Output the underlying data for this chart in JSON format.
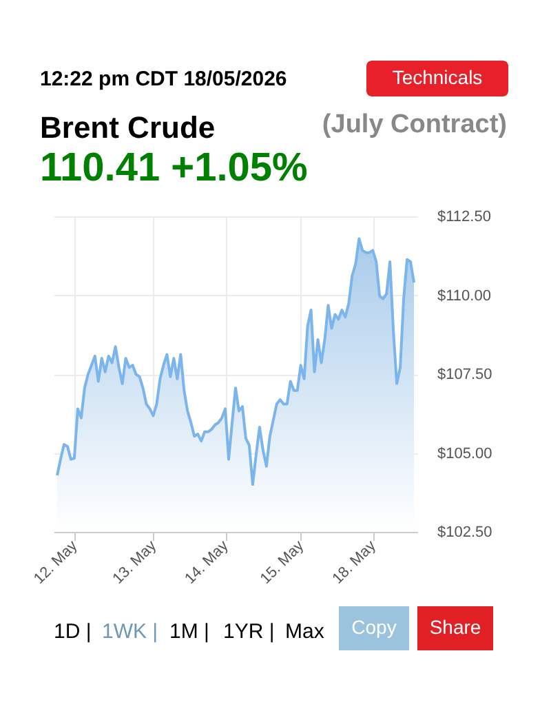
{
  "chart_data": {
    "type": "area",
    "title": "Brent Crude",
    "subtitle": "(July Contract)",
    "annotations": [
      "12:22 pm CDT 18/05/2026",
      "110.41 +1.05%",
      "Technicals",
      "1D |",
      "1WK |",
      "1M |",
      "1YR |",
      "Max",
      "Copy",
      "Share"
    ],
    "categories": [
      null,
      null,
      null,
      null,
      null,
      "12. May",
      null,
      null,
      null,
      null,
      null,
      null,
      null,
      null,
      null,
      null,
      null,
      null,
      null,
      null,
      null,
      null,
      null,
      null,
      null,
      null,
      null,
      null,
      "13. May",
      null,
      null,
      null,
      null,
      null,
      null,
      null,
      null,
      null,
      null,
      null,
      null,
      null,
      null,
      null,
      null,
      null,
      null,
      null,
      null,
      "14. May",
      null,
      null,
      null,
      null,
      null,
      null,
      null,
      null,
      null,
      null,
      null,
      null,
      null,
      null,
      null,
      null,
      null,
      null,
      null,
      null,
      null,
      "15. May",
      null,
      null,
      null,
      null,
      null,
      null,
      null,
      null,
      null,
      null,
      null,
      null,
      null,
      null,
      null,
      null,
      null,
      null,
      null,
      null,
      "18. May",
      null,
      null,
      null,
      null,
      null,
      null,
      null,
      null,
      null,
      null,
      null,
      null
    ],
    "series": [
      {
        "color": "#7cb5ec",
        "values": [
          104.29,
          104.8,
          105.27,
          105.21,
          104.8,
          104.83,
          106.4,
          106.11,
          107.06,
          107.49,
          107.78,
          108.07,
          107.27,
          108.0,
          107.57,
          108.07,
          107.86,
          108.37,
          107.71,
          107.2,
          108.0,
          107.71,
          107.78,
          107.49,
          107.42,
          107.06,
          106.55,
          106.4,
          106.18,
          106.55,
          107.35,
          107.78,
          108.12,
          107.42,
          108.0,
          107.35,
          108.12,
          106.98,
          106.33,
          105.96,
          105.53,
          105.6,
          105.38,
          105.67,
          105.67,
          105.75,
          105.89,
          105.96,
          106.11,
          106.4,
          104.8,
          105.96,
          107.06,
          106.33,
          106.47,
          105.46,
          105.24,
          104.0,
          104.95,
          105.82,
          105.09,
          104.58,
          105.53,
          106.04,
          106.55,
          106.69,
          106.55,
          106.55,
          107.27,
          106.98,
          106.98,
          107.78,
          107.35,
          109.02,
          109.53,
          107.57,
          108.59,
          107.86,
          108.59,
          109.68,
          108.95,
          109.39,
          109.24,
          109.53,
          109.31,
          109.75,
          110.62,
          110.99,
          111.79,
          111.42,
          111.35,
          111.35,
          111.42,
          111.06,
          109.97,
          109.89,
          110.04,
          111.06,
          108.88,
          107.2,
          107.71,
          109.89,
          111.13,
          111.06,
          110.4
        ]
      }
    ],
    "ylim": [
      102.5,
      112.5
    ],
    "yticks": [
      {
        "value": 102.5,
        "label": "$102.50"
      },
      {
        "value": 105,
        "label": "$105.00"
      },
      {
        "value": 107.5,
        "label": "$107.50"
      },
      {
        "value": 110,
        "label": "$110.00"
      },
      {
        "value": 112.5,
        "label": "$112.50"
      }
    ],
    "grid": true,
    "marker": "none",
    "line_style": "solid"
  }
}
